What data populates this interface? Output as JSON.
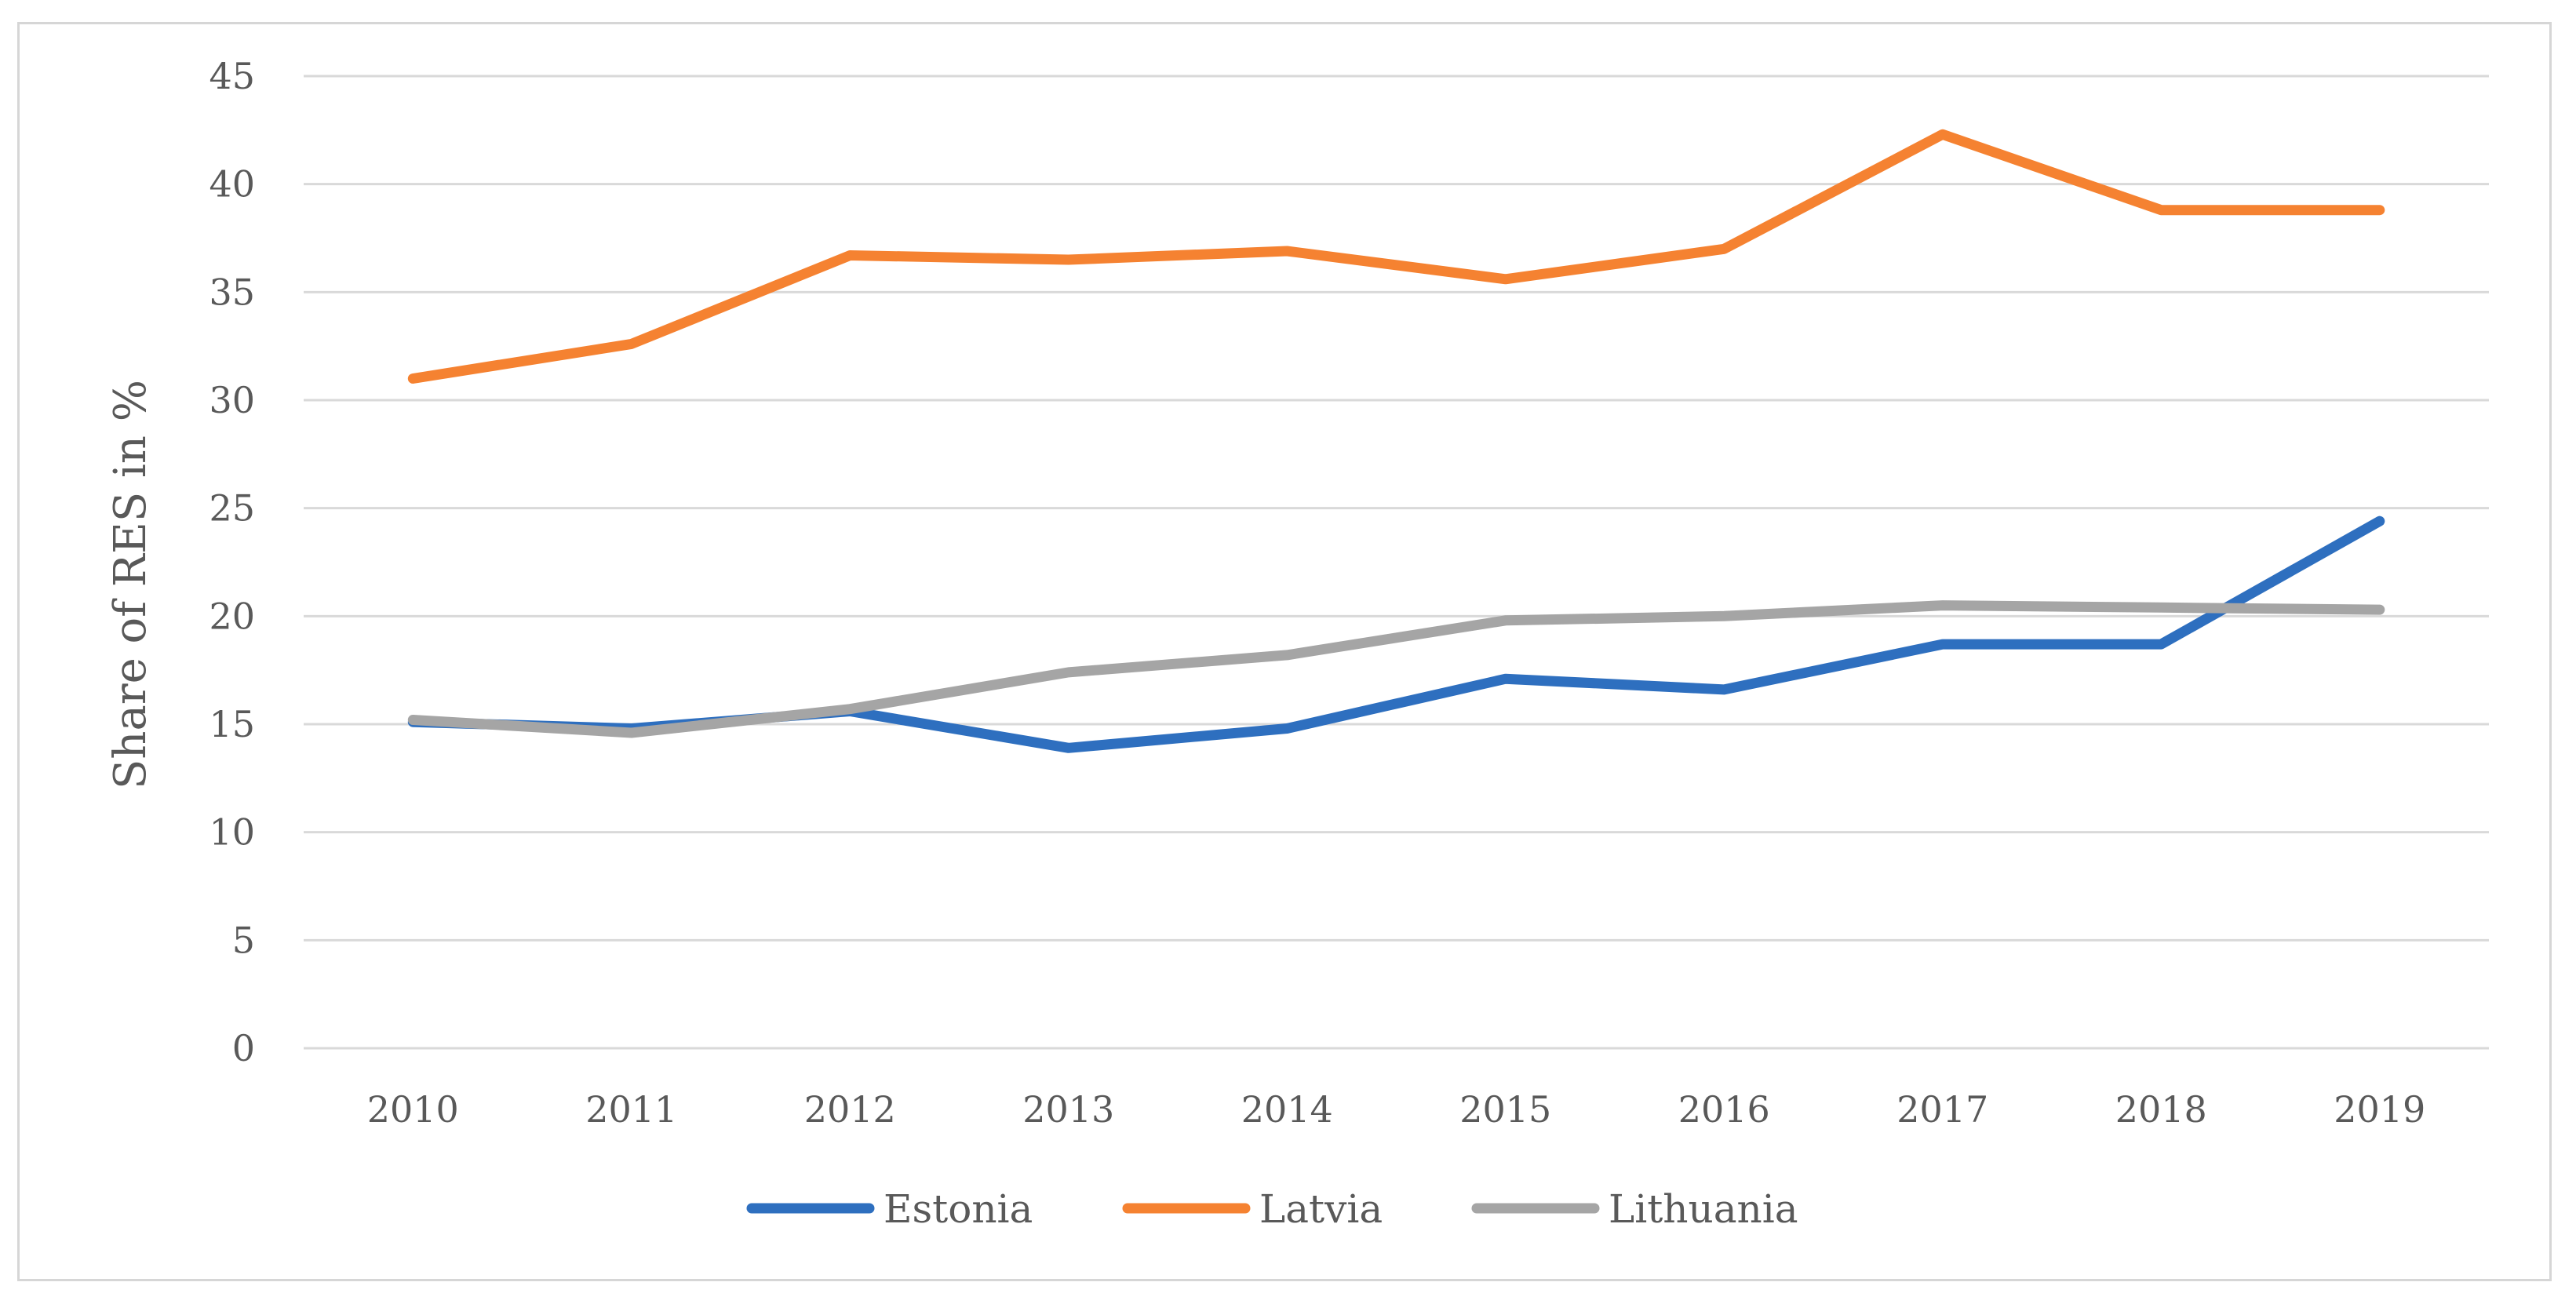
{
  "chart_data": {
    "type": "line",
    "title": "",
    "xlabel": "",
    "ylabel": "Share of RES in %",
    "categories": [
      "2010",
      "2011",
      "2012",
      "2013",
      "2014",
      "2015",
      "2016",
      "2017",
      "2018",
      "2019"
    ],
    "ylim": [
      0,
      45
    ],
    "yticks": [
      0,
      5,
      10,
      15,
      20,
      25,
      30,
      35,
      40,
      45
    ],
    "grid": "horizontal",
    "legend_position": "bottom",
    "series": [
      {
        "name": "Estonia",
        "color": "#2e6fbf",
        "values": [
          15.1,
          14.8,
          15.6,
          13.9,
          14.8,
          17.1,
          16.6,
          18.7,
          18.7,
          24.4
        ]
      },
      {
        "name": "Latvia",
        "color": "#f58231",
        "values": [
          31.0,
          32.6,
          36.7,
          36.5,
          36.9,
          35.6,
          37.0,
          42.3,
          38.8,
          38.8
        ]
      },
      {
        "name": "Lithuania",
        "color": "#a5a5a5",
        "values": [
          15.2,
          14.6,
          15.7,
          17.4,
          18.2,
          19.8,
          20.0,
          20.5,
          20.4,
          20.3
        ]
      }
    ]
  }
}
